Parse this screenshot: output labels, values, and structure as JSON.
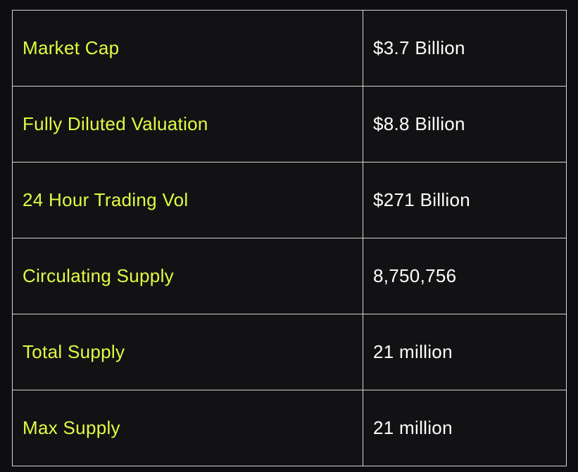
{
  "colors": {
    "background": "#0e0e12",
    "label_text": "#e2fb42",
    "value_text": "#ffffff",
    "border": "#d6d6d6"
  },
  "table": {
    "rows": [
      {
        "label": "Market Cap",
        "value": "$3.7 Billion"
      },
      {
        "label": "Fully Diluted Valuation",
        "value": "$8.8 Billion"
      },
      {
        "label": "24 Hour Trading Vol",
        "value": "$271 Billion"
      },
      {
        "label": "Circulating Supply",
        "value": "8,750,756"
      },
      {
        "label": "Total Supply",
        "value": "21 million"
      },
      {
        "label": "Max Supply",
        "value": "21 million"
      }
    ]
  }
}
